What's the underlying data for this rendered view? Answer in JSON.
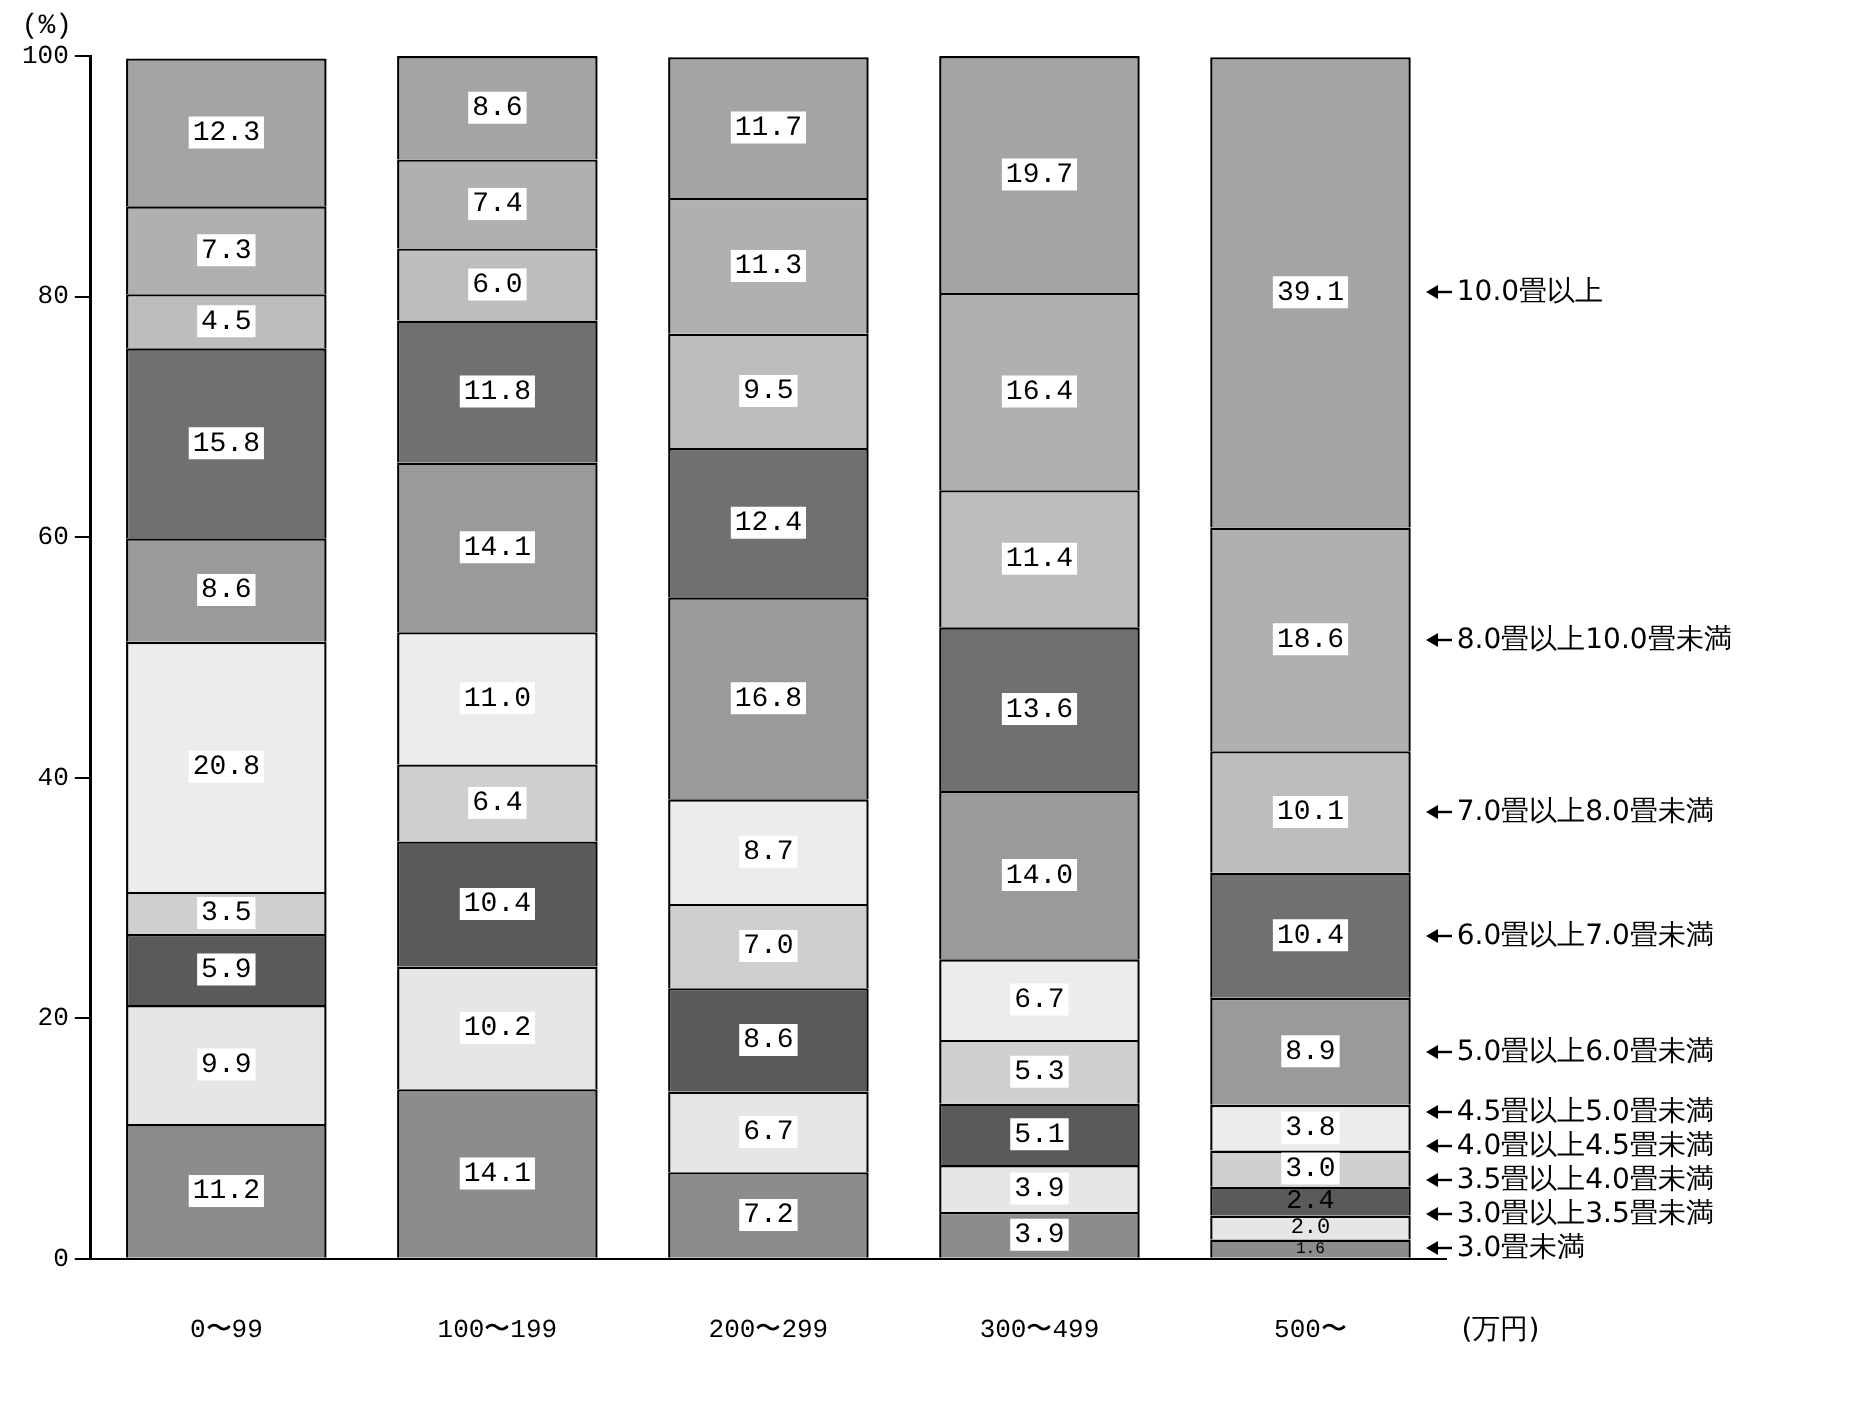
{
  "chart_data": {
    "type": "bar",
    "stacked": true,
    "ylabel": "(%)",
    "xlabel": "(万円)",
    "categories": [
      "0〜99",
      "100〜199",
      "200〜299",
      "300〜499",
      "500〜"
    ],
    "ylim": [
      0,
      100
    ],
    "yticks": [
      0,
      20,
      40,
      60,
      80,
      100
    ],
    "grid": false,
    "legend": false,
    "series": [
      {
        "name": "3.0畳未満",
        "color": "#8c8c8c",
        "values": [
          11.2,
          14.1,
          7.2,
          3.9,
          1.6
        ],
        "value_labels": [
          "11.2",
          "14.1",
          "7.2",
          "3.9",
          "1.6"
        ]
      },
      {
        "name": "3.0畳以上3.5畳未満",
        "color": "#e6e6e6",
        "values": [
          9.9,
          10.2,
          6.7,
          3.9,
          2.0
        ],
        "value_labels": [
          "9.9",
          "10.2",
          "6.7",
          "3.9",
          "2.0"
        ]
      },
      {
        "name": "3.5畳以上4.0畳未満",
        "color": "#5a5a5a",
        "values": [
          5.9,
          10.4,
          8.6,
          5.1,
          2.4
        ],
        "value_labels": [
          "5.9",
          "10.4",
          "8.6",
          "5.1",
          "2.4"
        ]
      },
      {
        "name": "4.0畳以上4.5畳未満",
        "color": "#cfcfcf",
        "values": [
          3.5,
          6.4,
          7.0,
          5.3,
          3.0
        ],
        "value_labels": [
          "3.5",
          "6.4",
          "7.0",
          "5.3",
          "3.0"
        ]
      },
      {
        "name": "4.5畳以上5.0畳未満",
        "color": "#ececec",
        "values": [
          20.8,
          11.0,
          8.7,
          6.7,
          3.8
        ],
        "value_labels": [
          "20.8",
          "11.0",
          "8.7",
          "6.7",
          "3.8"
        ]
      },
      {
        "name": "5.0畳以上6.0畳未満",
        "color": "#9a9a9a",
        "values": [
          8.6,
          14.1,
          16.8,
          14.0,
          8.9
        ],
        "value_labels": [
          "8.6",
          "14.1",
          "16.8",
          "14.0",
          "8.9"
        ]
      },
      {
        "name": "6.0畳以上7.0畳未満",
        "color": "#707070",
        "values": [
          15.8,
          11.8,
          12.4,
          13.6,
          10.4
        ],
        "value_labels": [
          "15.8",
          "11.8",
          "12.4",
          "13.6",
          "10.4"
        ]
      },
      {
        "name": "7.0畳以上8.0畳未満",
        "color": "#bdbdbd",
        "values": [
          4.5,
          6.0,
          9.5,
          11.4,
          10.1
        ],
        "value_labels": [
          "4.5",
          "6.0",
          "9.5",
          "11.4",
          "10.1"
        ]
      },
      {
        "name": "8.0畳以上10.0畳未満",
        "color": "#b0b0b0",
        "values": [
          7.3,
          7.4,
          11.3,
          16.4,
          18.6
        ],
        "value_labels": [
          "7.3",
          "7.4",
          "11.3",
          "16.4",
          "18.6"
        ]
      },
      {
        "name": "10.0畳以上",
        "color": "#a4a4a4",
        "values": [
          12.3,
          8.6,
          11.7,
          19.7,
          39.1
        ],
        "value_labels": [
          "12.3",
          "8.6",
          "11.7",
          "19.7",
          "39.1"
        ]
      }
    ]
  }
}
